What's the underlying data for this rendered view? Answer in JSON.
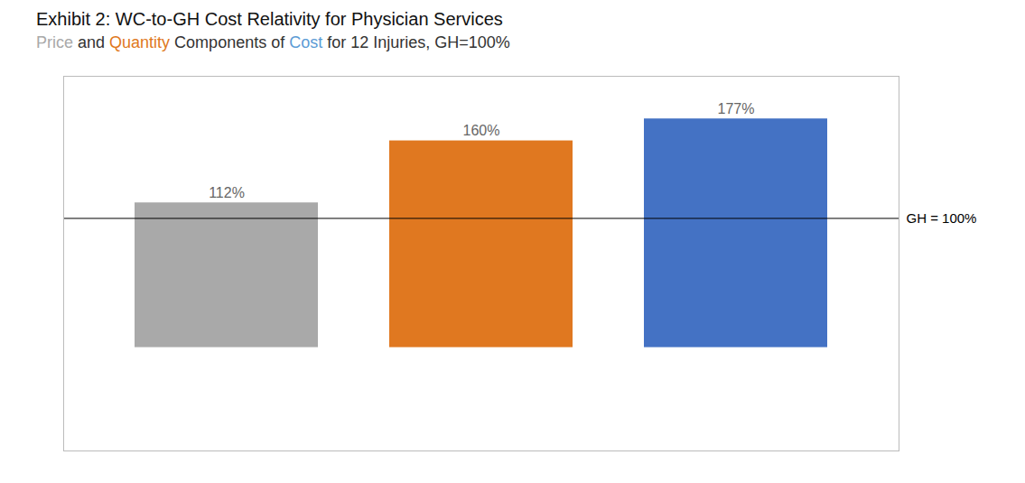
{
  "chart_data": {
    "type": "bar",
    "title": "Exhibit 2: WC-to-GH Cost Relativity for Physician Services",
    "subtitle": [
      {
        "text": "Price",
        "color": "#a9a9a9"
      },
      {
        "text": " and ",
        "color": "#333333"
      },
      {
        "text": "Quantity",
        "color": "#e07820"
      },
      {
        "text": " Components of ",
        "color": "#333333"
      },
      {
        "text": "Cost",
        "color": "#5b9bd5"
      },
      {
        "text": " for 12 Injuries, GH=100%",
        "color": "#333333"
      }
    ],
    "categories": [
      null,
      null,
      null
    ],
    "values": [
      112,
      160,
      177
    ],
    "value_labels": [
      "112%",
      "160%",
      "177%"
    ],
    "colors": [
      "#a9a9a9",
      "#e07820",
      "#4472c4"
    ],
    "data_labels": true,
    "ylim": [
      -80,
      210
    ],
    "tick_labels": false,
    "grid": false,
    "annotations": [
      {
        "y": 100,
        "text": "GH = 100%"
      }
    ]
  }
}
